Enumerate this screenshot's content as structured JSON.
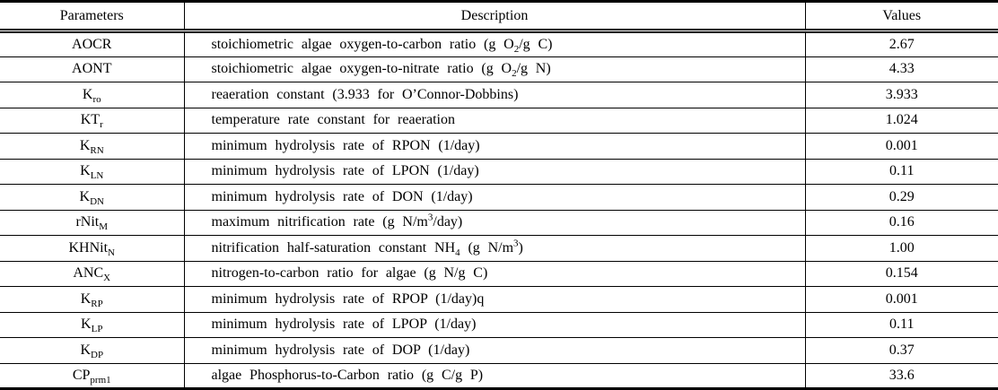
{
  "notation": {
    "subscript": "wrapped in ~tildes~",
    "superscript": "wrapped in ^carets^"
  },
  "colors": {
    "text": "#000000",
    "border": "#000000",
    "background": "#ffffff"
  },
  "table": {
    "columns": [
      "Parameters",
      "Description",
      "Values"
    ],
    "rows": [
      {
        "param": "AOCR",
        "desc": "stoichiometric algae oxygen-to-carbon ratio (g O~2~/g C)",
        "value": "2.67"
      },
      {
        "param": "AONT",
        "desc": "stoichiometric algae oxygen-to-nitrate ratio (g O~2~/g N)",
        "value": "4.33"
      },
      {
        "param": "K~ro~",
        "desc": "reaeration constant (3.933 for O’Connor-Dobbins)",
        "value": "3.933"
      },
      {
        "param": "KT~r~",
        "desc": "temperature rate constant for reaeration",
        "value": "1.024"
      },
      {
        "param": "K~RN~",
        "desc": "minimum hydrolysis rate of RPON (1/day)",
        "value": "0.001"
      },
      {
        "param": "K~LN~",
        "desc": "minimum hydrolysis rate of LPON (1/day)",
        "value": "0.11"
      },
      {
        "param": "K~DN~",
        "desc": "minimum hydrolysis rate of DON (1/day)",
        "value": "0.29"
      },
      {
        "param": "rNit~M~",
        "desc": "maximum nitrification rate (g N/m^3^/day)",
        "value": "0.16"
      },
      {
        "param": "KHNit~N~",
        "desc": "nitrification half-saturation constant NH~4~ (g N/m^3^)",
        "value": "1.00"
      },
      {
        "param": "ANC~X~",
        "desc": "nitrogen-to-carbon ratio for algae (g N/g C)",
        "value": "0.154"
      },
      {
        "param": "K~RP~",
        "desc": "minimum hydrolysis rate of RPOP (1/day)q",
        "value": "0.001"
      },
      {
        "param": "K~LP~",
        "desc": "minimum hydrolysis rate of LPOP (1/day)",
        "value": "0.11"
      },
      {
        "param": "K~DP~",
        "desc": "minimum hydrolysis rate of DOP (1/day)",
        "value": "0.37"
      },
      {
        "param": "CP~prm1~",
        "desc": "algae Phosphorus-to-Carbon ratio (g C/g P)",
        "value": "33.6"
      }
    ]
  }
}
